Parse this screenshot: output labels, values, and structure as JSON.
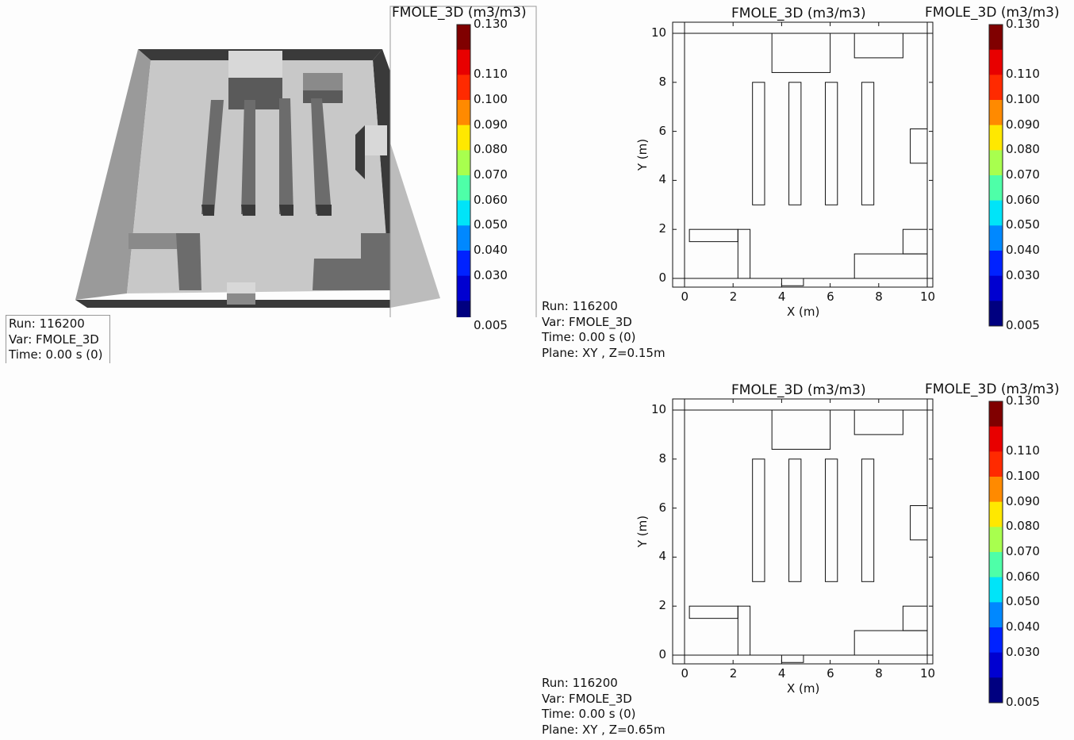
{
  "scene3d": {
    "colorbar": {
      "title": "FMOLE_3D (m3/m3)",
      "ticks": [
        "0.130",
        "0.110",
        "0.100",
        "0.090",
        "0.080",
        "0.070",
        "0.060",
        "0.050",
        "0.040",
        "0.030",
        "0.005"
      ]
    },
    "info": [
      "Run: 116200",
      "Var: FMOLE_3D",
      "Time: 0.00 s (0)"
    ]
  },
  "colors": {
    "levels": [
      "#800000",
      "#e80000",
      "#ff2a00",
      "#ff8a00",
      "#ffe800",
      "#a8ff4e",
      "#4effa8",
      "#00e4f8",
      "#0088ff",
      "#0022ff",
      "#0000d0",
      "#000080"
    ],
    "wall_dark": "#3a3a3a",
    "floor": "#c8c8c8",
    "obstacle_side": "#6c6c6c",
    "obstacle_top": "#d8d8d8"
  },
  "chart_data": [
    {
      "type": "outline",
      "title": "FMOLE_3D (m3/m3)",
      "xlabel": "X (m)",
      "ylabel": "Y (m)",
      "xlim": [
        0,
        10
      ],
      "ylim": [
        0,
        10
      ],
      "xticks": [
        0,
        2,
        4,
        6,
        8,
        10
      ],
      "yticks": [
        0,
        2,
        4,
        6,
        8,
        10
      ],
      "obstacles": [
        {
          "x0": 3.6,
          "x1": 6.0,
          "y0": 8.4,
          "y1": 10.0
        },
        {
          "x0": 7.0,
          "x1": 9.0,
          "y0": 9.0,
          "y1": 10.0
        },
        {
          "x0": 2.8,
          "x1": 3.3,
          "y0": 3.0,
          "y1": 8.0
        },
        {
          "x0": 4.3,
          "x1": 4.8,
          "y0": 3.0,
          "y1": 8.0
        },
        {
          "x0": 5.8,
          "x1": 6.3,
          "y0": 3.0,
          "y1": 8.0
        },
        {
          "x0": 7.3,
          "x1": 7.8,
          "y0": 3.0,
          "y1": 8.0
        },
        {
          "x0": 9.3,
          "x1": 10.0,
          "y0": 4.7,
          "y1": 6.1
        },
        {
          "x0": 0.2,
          "x1": 2.2,
          "y0": 1.5,
          "y1": 2.0
        },
        {
          "x0": 2.2,
          "x1": 2.7,
          "y0": 0.0,
          "y1": 2.0
        },
        {
          "x0": 7.0,
          "x1": 10.0,
          "y0": 0.0,
          "y1": 1.0
        },
        {
          "x0": 9.0,
          "x1": 10.0,
          "y0": 1.0,
          "y1": 2.0
        },
        {
          "x0": 4.0,
          "x1": 4.9,
          "y0": -0.3,
          "y1": 0.0
        }
      ],
      "colorbar": {
        "title": "FMOLE_3D (m3/m3)",
        "ticks": [
          "0.130",
          "0.110",
          "0.100",
          "0.090",
          "0.080",
          "0.070",
          "0.060",
          "0.050",
          "0.040",
          "0.030",
          "0.005"
        ]
      },
      "info": [
        "Run: 116200",
        "Var: FMOLE_3D",
        "Time: 0.00 s (0)",
        "Plane: XY , Z=0.15m"
      ]
    },
    {
      "type": "outline",
      "title": "FMOLE_3D (m3/m3)",
      "xlabel": "X (m)",
      "ylabel": "Y (m)",
      "xlim": [
        0,
        10
      ],
      "ylim": [
        0,
        10
      ],
      "xticks": [
        0,
        2,
        4,
        6,
        8,
        10
      ],
      "yticks": [
        0,
        2,
        4,
        6,
        8,
        10
      ],
      "obstacles": [
        {
          "x0": 3.6,
          "x1": 6.0,
          "y0": 8.4,
          "y1": 10.0
        },
        {
          "x0": 7.0,
          "x1": 9.0,
          "y0": 9.0,
          "y1": 10.0
        },
        {
          "x0": 2.8,
          "x1": 3.3,
          "y0": 3.0,
          "y1": 8.0
        },
        {
          "x0": 4.3,
          "x1": 4.8,
          "y0": 3.0,
          "y1": 8.0
        },
        {
          "x0": 5.8,
          "x1": 6.3,
          "y0": 3.0,
          "y1": 8.0
        },
        {
          "x0": 7.3,
          "x1": 7.8,
          "y0": 3.0,
          "y1": 8.0
        },
        {
          "x0": 9.3,
          "x1": 10.0,
          "y0": 4.7,
          "y1": 6.1
        },
        {
          "x0": 0.2,
          "x1": 2.2,
          "y0": 1.5,
          "y1": 2.0
        },
        {
          "x0": 2.2,
          "x1": 2.7,
          "y0": 0.0,
          "y1": 2.0
        },
        {
          "x0": 7.0,
          "x1": 10.0,
          "y0": 0.0,
          "y1": 1.0
        },
        {
          "x0": 9.0,
          "x1": 10.0,
          "y0": 1.0,
          "y1": 2.0
        },
        {
          "x0": 4.0,
          "x1": 4.9,
          "y0": -0.3,
          "y1": 0.0
        }
      ],
      "colorbar": {
        "title": "FMOLE_3D (m3/m3)",
        "ticks": [
          "0.130",
          "0.110",
          "0.100",
          "0.090",
          "0.080",
          "0.070",
          "0.060",
          "0.050",
          "0.040",
          "0.030",
          "0.005"
        ]
      },
      "info": [
        "Run: 116200",
        "Var: FMOLE_3D",
        "Time: 0.00 s (0)",
        "Plane: XY , Z=0.65m"
      ]
    }
  ]
}
